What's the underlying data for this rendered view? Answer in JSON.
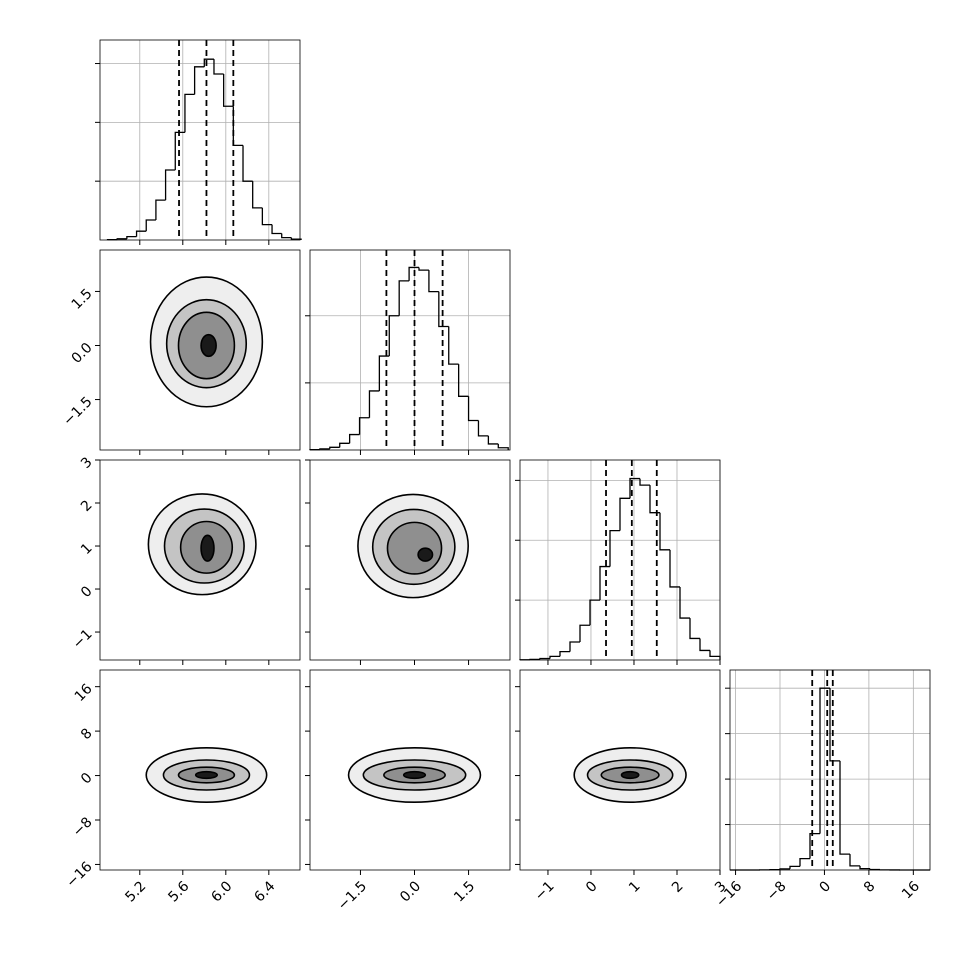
{
  "chart_data": {
    "type": "corner",
    "grid": true,
    "line_color": "#000000",
    "contour_colors": [
      "#eeeeee",
      "#c4c4c4",
      "#8f8f8f",
      "#1a1a1a"
    ],
    "variables": [
      {
        "lim": [
          4.83,
          6.69
        ],
        "ticks": [
          5.2,
          5.6,
          {
            "value": 6,
            "label": "6.0"
          },
          6.4
        ],
        "bins": [
          4.9,
          4.99,
          5.08,
          5.17,
          5.26,
          5.35,
          5.44,
          5.53,
          5.62,
          5.71,
          5.8,
          5.89,
          5.98,
          6.07,
          6.16,
          6.25,
          6.34,
          6.43,
          6.52,
          6.61,
          6.7
        ],
        "counts": [
          3,
          10,
          29,
          75,
          170,
          339,
          595,
          915,
          1238,
          1472,
          1537,
          1411,
          1137,
          804,
          500,
          273,
          131,
          55,
          20,
          7
        ],
        "quantiles": [
          5.565,
          5.82,
          6.07
        ],
        "hist_ylim": [
          0,
          1700
        ],
        "hist_yticks": [
          500,
          1000,
          1500
        ]
      },
      {
        "lim": [
          -2.9,
          2.65
        ],
        "ticks": [
          {
            "value": -1.5,
            "label": "−1.5"
          },
          {
            "value": 0,
            "label": "0.0"
          },
          1.5
        ],
        "bins": [
          -2.9,
          -2.625,
          -2.35,
          -2.075,
          -1.8,
          -1.525,
          -1.25,
          -0.975,
          -0.7,
          -0.425,
          -0.15,
          0.125,
          0.4,
          0.675,
          0.95,
          1.225,
          1.5,
          1.775,
          2.05,
          2.325,
          2.6
        ],
        "counts": [
          3,
          8,
          20,
          50,
          115,
          240,
          440,
          700,
          1000,
          1260,
          1360,
          1340,
          1180,
          920,
          640,
          400,
          220,
          105,
          45,
          17
        ],
        "quantiles": [
          -0.78,
          0,
          0.78
        ],
        "hist_ylim": [
          0,
          1490
        ],
        "hist_yticks": [
          500,
          1000
        ]
      },
      {
        "lim": [
          -1.65,
          3.0
        ],
        "ticks": [
          {
            "value": -1,
            "label": "−1"
          },
          0,
          1,
          2,
          3
        ],
        "bins": [
          -1.65,
          -1.4175,
          -1.185,
          -0.9525,
          -0.72,
          -0.4875,
          -0.255,
          -0.0225,
          0.21,
          0.4425,
          0.675,
          0.9075,
          1.14,
          1.3725,
          1.605,
          1.8375,
          2.07,
          2.3025,
          2.535,
          2.7675,
          3.0
        ],
        "counts": [
          2,
          5,
          12,
          30,
          70,
          150,
          290,
          500,
          780,
          1080,
          1350,
          1515,
          1460,
          1230,
          920,
          610,
          350,
          180,
          80,
          30
        ],
        "quantiles": [
          0.35,
          0.95,
          1.53
        ],
        "hist_ylim": [
          0,
          1670
        ],
        "hist_yticks": [
          500,
          1000,
          1500
        ]
      },
      {
        "lim": [
          -17,
          19
        ],
        "ticks": [
          {
            "value": -16,
            "label": "−16"
          },
          {
            "value": -8,
            "label": "−8"
          },
          0,
          8,
          16
        ],
        "bins": [
          -17,
          -15.2,
          -13.4,
          -11.6,
          -9.8,
          -8,
          -6.2,
          -4.4,
          -2.6,
          -0.8,
          1,
          2.8,
          4.6,
          6.4,
          8.2,
          10,
          11.8,
          13.6,
          15.4,
          17.2,
          19
        ],
        "counts": [
          0,
          0,
          0,
          2,
          8,
          25,
          80,
          250,
          800,
          4000,
          2400,
          350,
          90,
          30,
          10,
          3,
          1,
          0,
          0,
          0
        ],
        "quantiles": [
          -2.2,
          0.5,
          1.5
        ],
        "hist_ylim": [
          0,
          4400
        ],
        "hist_yticks": [
          1000,
          2000,
          3000,
          4000
        ]
      }
    ],
    "pairs": [
      {
        "contours": [
          {
            "cx": 5.82,
            "cy": 0.1,
            "rx": 0.52,
            "ry": 1.8
          },
          {
            "cx": 5.82,
            "cy": 0.05,
            "rx": 0.37,
            "ry": 1.22
          },
          {
            "cx": 5.82,
            "cy": 0.0,
            "rx": 0.26,
            "ry": 0.92
          },
          {
            "cx": 5.84,
            "cy": 0.0,
            "rx": 0.07,
            "ry": 0.3
          }
        ]
      },
      {
        "contours": [
          {
            "cx": 5.78,
            "cy": 1.04,
            "rx": 0.5,
            "ry": 1.17
          },
          {
            "cx": 5.8,
            "cy": 1.0,
            "rx": 0.37,
            "ry": 0.86
          },
          {
            "cx": 5.82,
            "cy": 0.97,
            "rx": 0.24,
            "ry": 0.6
          },
          {
            "cx": 5.83,
            "cy": 0.95,
            "rx": 0.06,
            "ry": 0.3
          }
        ]
      },
      {
        "contours": [
          {
            "cx": -0.04,
            "cy": 1.0,
            "rx": 1.53,
            "ry": 1.2
          },
          {
            "cx": -0.02,
            "cy": 0.98,
            "rx": 1.14,
            "ry": 0.87
          },
          {
            "cx": 0.0,
            "cy": 0.95,
            "rx": 0.75,
            "ry": 0.6
          },
          {
            "cx": 0.3,
            "cy": 0.8,
            "rx": 0.2,
            "ry": 0.15
          }
        ]
      },
      {
        "contours": [
          {
            "cx": 5.82,
            "cy": 0.1,
            "rx": 0.56,
            "ry": 4.9
          },
          {
            "cx": 5.82,
            "cy": 0.1,
            "rx": 0.4,
            "ry": 2.7
          },
          {
            "cx": 5.82,
            "cy": 0.1,
            "rx": 0.26,
            "ry": 1.4
          },
          {
            "cx": 5.82,
            "cy": 0.1,
            "rx": 0.1,
            "ry": 0.6
          }
        ]
      },
      {
        "contours": [
          {
            "cx": 0.0,
            "cy": 0.1,
            "rx": 1.83,
            "ry": 4.9
          },
          {
            "cx": 0.0,
            "cy": 0.1,
            "rx": 1.42,
            "ry": 2.7
          },
          {
            "cx": 0.0,
            "cy": 0.1,
            "rx": 0.85,
            "ry": 1.4
          },
          {
            "cx": 0.0,
            "cy": 0.1,
            "rx": 0.3,
            "ry": 0.6
          }
        ]
      },
      {
        "contours": [
          {
            "cx": 0.91,
            "cy": 0.1,
            "rx": 1.3,
            "ry": 4.9
          },
          {
            "cx": 0.91,
            "cy": 0.1,
            "rx": 0.99,
            "ry": 2.7
          },
          {
            "cx": 0.91,
            "cy": 0.1,
            "rx": 0.67,
            "ry": 1.4
          },
          {
            "cx": 0.91,
            "cy": 0.1,
            "rx": 0.2,
            "ry": 0.6
          }
        ]
      }
    ]
  }
}
